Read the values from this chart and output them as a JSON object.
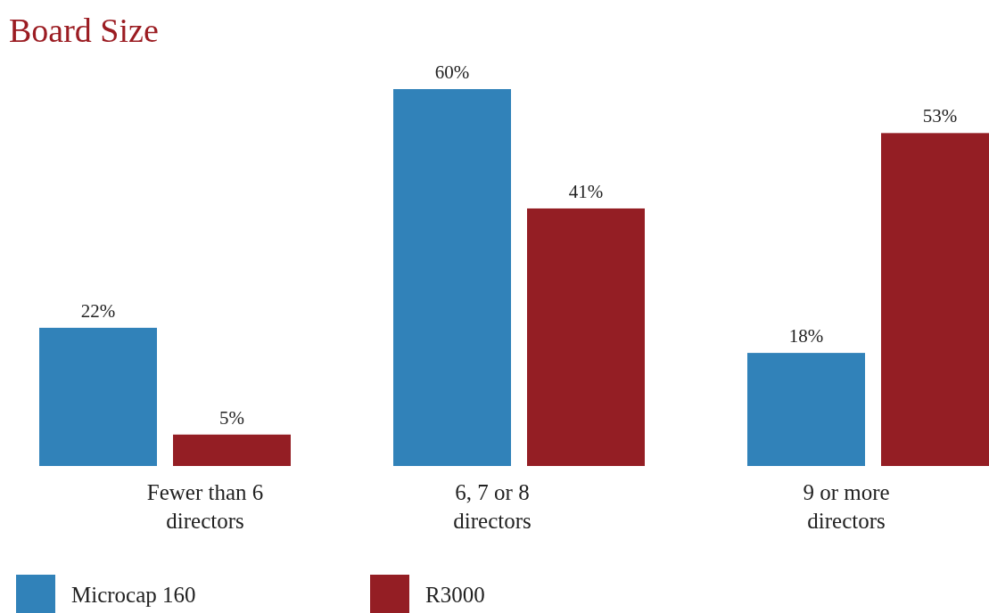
{
  "chart_data": {
    "type": "bar",
    "title": "Board Size",
    "categories": [
      "Fewer than 6 directors",
      "6, 7 or 8 directors",
      "9 or more directors"
    ],
    "series": [
      {
        "name": "Microcap 160",
        "color": "#3182b9",
        "values": [
          22,
          60,
          18
        ],
        "value_labels": [
          "22%",
          "60%",
          "18%"
        ]
      },
      {
        "name": "R3000",
        "color": "#941e24",
        "values": [
          5,
          41,
          53
        ],
        "value_labels": [
          "5%",
          "41%",
          "53%"
        ]
      }
    ],
    "legend": "bottom"
  }
}
